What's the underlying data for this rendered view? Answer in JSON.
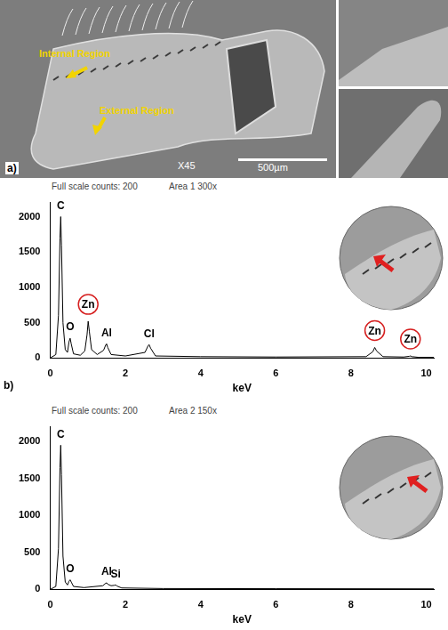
{
  "panel_a": {
    "label": "a)",
    "annotations": [
      "Internal Region",
      "External Region"
    ],
    "magnification": "X45",
    "scale_bar": "500µm"
  },
  "chart_data": [
    {
      "type": "line",
      "panel": "b)",
      "subtitle": "Full scale counts: 200",
      "area": "Area 1 300x",
      "x_label": "keV",
      "x": [
        0,
        0.15,
        0.22,
        0.26,
        0.28,
        0.3,
        0.34,
        0.4,
        0.46,
        0.5,
        0.53,
        0.56,
        0.62,
        0.8,
        0.92,
        0.98,
        1.01,
        1.04,
        1.1,
        1.25,
        1.42,
        1.48,
        1.5,
        1.53,
        1.62,
        2.0,
        2.52,
        2.6,
        2.63,
        2.67,
        2.8,
        4,
        6,
        8.4,
        8.58,
        8.63,
        8.68,
        8.85,
        9.4,
        9.55,
        9.58,
        9.62,
        9.8,
        10.2
      ],
      "values": [
        0,
        50,
        600,
        1700,
        2000,
        1600,
        500,
        120,
        80,
        230,
        280,
        200,
        60,
        40,
        100,
        330,
        520,
        380,
        120,
        50,
        110,
        190,
        200,
        150,
        50,
        30,
        80,
        170,
        190,
        140,
        30,
        20,
        15,
        20,
        90,
        150,
        100,
        20,
        15,
        25,
        30,
        20,
        10,
        10
      ],
      "color": "#000000",
      "xlim": [
        0,
        10.2
      ],
      "xticks": [
        0,
        2,
        4,
        6,
        8,
        10
      ],
      "ylim": [
        0,
        2200
      ],
      "yticks": [
        0,
        500,
        1000,
        1500,
        2000
      ],
      "grid": false,
      "peaks": [
        {
          "label": "C",
          "x": 0.28,
          "y": 2000
        },
        {
          "label": "O",
          "x": 0.53,
          "y": 280
        },
        {
          "label": "Zn",
          "x": 1.01,
          "y": 520,
          "marker": "circle"
        },
        {
          "label": "Al",
          "x": 1.5,
          "y": 200
        },
        {
          "label": "Cl",
          "x": 2.63,
          "y": 190
        },
        {
          "label": "Zn",
          "x": 8.63,
          "y": 150,
          "marker": "circle"
        },
        {
          "label": "Zn",
          "x": 9.58,
          "y": 30,
          "marker": "circle"
        }
      ]
    },
    {
      "type": "line",
      "subtitle": "Full scale counts: 200",
      "area": "Area 2 150x",
      "x_label": "keV",
      "x": [
        0,
        0.15,
        0.22,
        0.26,
        0.28,
        0.3,
        0.34,
        0.4,
        0.46,
        0.5,
        0.53,
        0.56,
        0.62,
        0.9,
        1.4,
        1.48,
        1.5,
        1.53,
        1.62,
        1.7,
        1.74,
        1.78,
        1.9,
        3,
        6,
        10.2
      ],
      "values": [
        0,
        40,
        550,
        1650,
        1950,
        1550,
        450,
        100,
        60,
        110,
        130,
        100,
        40,
        25,
        50,
        85,
        90,
        70,
        50,
        55,
        60,
        45,
        20,
        12,
        10,
        8
      ],
      "color": "#000000",
      "xlim": [
        0,
        10.2
      ],
      "xticks": [
        0,
        2,
        4,
        6,
        8,
        10
      ],
      "ylim": [
        0,
        2200
      ],
      "yticks": [
        0,
        500,
        1000,
        1500,
        2000
      ],
      "grid": false,
      "peaks": [
        {
          "label": "C",
          "x": 0.28,
          "y": 1950
        },
        {
          "label": "O",
          "x": 0.53,
          "y": 130
        },
        {
          "label": "Al",
          "x": 1.5,
          "y": 90
        },
        {
          "label": "Si",
          "x": 1.74,
          "y": 60
        }
      ]
    }
  ]
}
